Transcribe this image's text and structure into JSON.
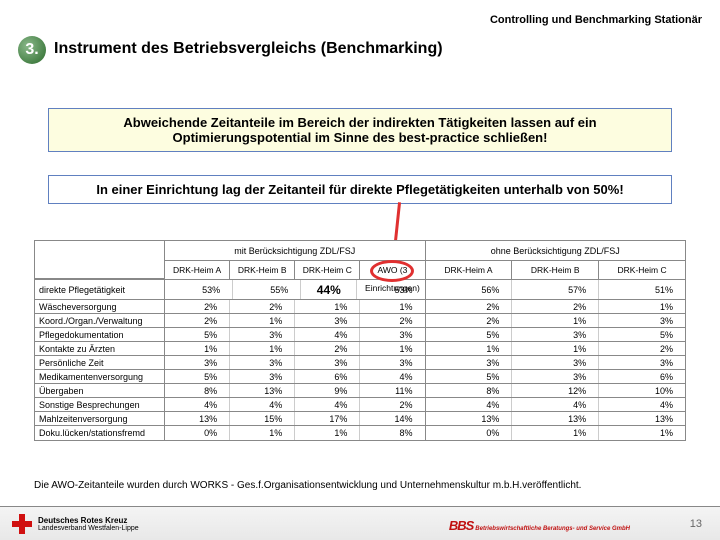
{
  "header": "Controlling und Benchmarking Stationär",
  "section": {
    "num": "3.",
    "title": "Instrument des Betriebsvergleichs (Benchmarking)"
  },
  "callout1": "Abweichende Zeitanteile im Bereich der indirekten Tätigkeiten lassen auf ein Optimierungspotential im Sinne des best-practice schließen!",
  "callout2": "In einer Einrichtung lag der Zeitanteil für direkte Pflegetätigkeiten unterhalb von 50%!",
  "table": {
    "group_headers": [
      "mit Berücksichtigung ZDL/FSJ",
      "ohne Berücksichtigung ZDL/FSJ"
    ],
    "sub_headers_left": [
      "DRK-Heim A",
      "DRK-Heim B",
      "DRK-Heim C",
      "AWO (3 Einrichtungen)"
    ],
    "sub_headers_right": [
      "DRK-Heim A",
      "DRK-Heim B",
      "DRK-Heim C"
    ],
    "rows": [
      {
        "label": "direkte Pflegetätigkeit",
        "tall": true,
        "left": [
          "53%",
          "55%",
          "44%",
          "53%"
        ],
        "right": [
          "56%",
          "57%",
          "51%"
        ],
        "hl_idx": 2
      },
      {
        "label": "Wäscheversorgung",
        "left": [
          "2%",
          "2%",
          "1%",
          "1%"
        ],
        "right": [
          "2%",
          "2%",
          "1%"
        ]
      },
      {
        "label": "Koord./Organ./Verwaltung",
        "left": [
          "2%",
          "1%",
          "3%",
          "2%"
        ],
        "right": [
          "2%",
          "1%",
          "3%"
        ]
      },
      {
        "label": "Pflegedokumentation",
        "left": [
          "5%",
          "3%",
          "4%",
          "3%"
        ],
        "right": [
          "5%",
          "3%",
          "5%"
        ]
      },
      {
        "label": "Kontakte zu Ärzten",
        "left": [
          "1%",
          "1%",
          "2%",
          "1%"
        ],
        "right": [
          "1%",
          "1%",
          "2%"
        ]
      },
      {
        "label": "Persönliche Zeit",
        "left": [
          "3%",
          "3%",
          "3%",
          "3%"
        ],
        "right": [
          "3%",
          "3%",
          "3%"
        ]
      },
      {
        "label": "Medikamentenversorgung",
        "left": [
          "5%",
          "3%",
          "6%",
          "4%"
        ],
        "right": [
          "5%",
          "3%",
          "6%"
        ]
      },
      {
        "label": "Übergaben",
        "left": [
          "8%",
          "13%",
          "9%",
          "11%"
        ],
        "right": [
          "8%",
          "12%",
          "10%"
        ]
      },
      {
        "label": "Sonstige Besprechungen",
        "left": [
          "4%",
          "4%",
          "4%",
          "2%"
        ],
        "right": [
          "4%",
          "4%",
          "4%"
        ]
      },
      {
        "label": "Mahlzeitenversorgung",
        "left": [
          "13%",
          "15%",
          "17%",
          "14%"
        ],
        "right": [
          "13%",
          "13%",
          "13%"
        ]
      },
      {
        "label": "Doku.lücken/stationsfremd",
        "left": [
          "0%",
          "1%",
          "1%",
          "8%"
        ],
        "right": [
          "0%",
          "1%",
          "1%"
        ]
      }
    ]
  },
  "footnote": "Die AWO-Zeitanteile wurden durch WORKS - Ges.f.Organisationsentwicklung und Unternehmenskultur m.b.H.veröffentlicht.",
  "footer": {
    "left_line1": "Deutsches Rotes Kreuz",
    "left_line2": "Landesverband Westfalen-Lippe",
    "right_bbs": "BBS",
    "right_lines": "Betriebswirtschaftliche Beratungs- und Service GmbH",
    "page": "13"
  }
}
